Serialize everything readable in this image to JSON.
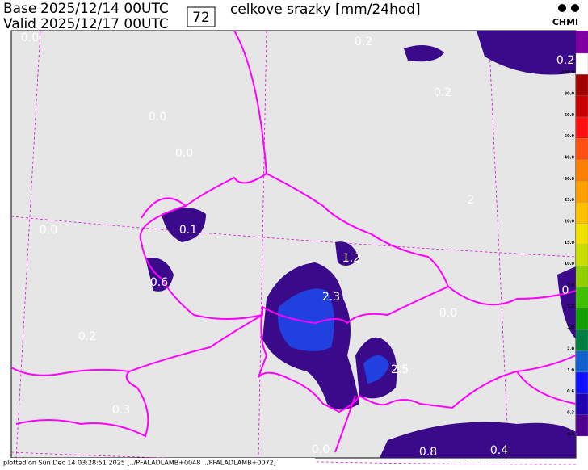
{
  "header": {
    "base_label": "Base",
    "base_time": "2025/12/14 00UTC",
    "valid_label": "Valid",
    "valid_time": "2025/12/17 00UTC",
    "lead": "72",
    "title": "celkove srazky [mm/24hod]",
    "logo": "CHMI"
  },
  "legend": [
    {
      "label": "100.0",
      "color": "#ffffff"
    },
    {
      "label": "80.0",
      "color": "#a00000"
    },
    {
      "label": "60.0",
      "color": "#c80000"
    },
    {
      "label": "50.0",
      "color": "#ff1010"
    },
    {
      "label": "40.0",
      "color": "#ff5010"
    },
    {
      "label": "30.0",
      "color": "#ff8000"
    },
    {
      "label": "25.0",
      "color": "#ffa000"
    },
    {
      "label": "20.0",
      "color": "#ffc000"
    },
    {
      "label": "15.0",
      "color": "#f0e000"
    },
    {
      "label": "10.0",
      "color": "#c8dc00"
    },
    {
      "label": "7.0",
      "color": "#90d000"
    },
    {
      "label": "5.0",
      "color": "#40c000"
    },
    {
      "label": "3.0",
      "color": "#10a000"
    },
    {
      "label": "2.0",
      "color": "#008040"
    },
    {
      "label": "1.0",
      "color": "#1060d0"
    },
    {
      "label": "0.6",
      "color": "#1010ff"
    },
    {
      "label": "0.3",
      "color": "#2000b0"
    },
    {
      "label": "0.1",
      "color": "#500090"
    }
  ],
  "map_labels": [
    "0.0",
    "0.2",
    "0.2",
    "0.2",
    "0.0",
    "0.0",
    "0.0",
    "0.1",
    "1.2",
    "0.6",
    "2.3",
    "0.0",
    "0.2",
    "2.5",
    "0.3",
    "0.0",
    "0.8",
    "0.4",
    "0",
    "2"
  ],
  "footer": "plotted on Sun Dec 14 03:28:51 2025 [../PFALADLAMB+0048 ../PFALADLAMB+0072]"
}
